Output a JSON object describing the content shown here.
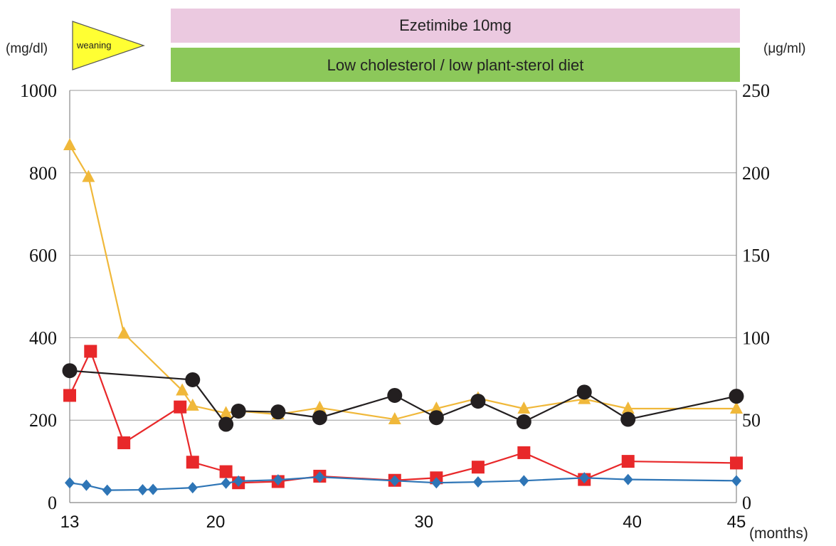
{
  "chart_data": {
    "type": "line",
    "x_unit": "(months)",
    "x_ticks": [
      13,
      20,
      30,
      40,
      45
    ],
    "xlim": [
      13,
      45
    ],
    "left_axis": {
      "unit": "(mg/dl)",
      "ylim": [
        0,
        1000
      ],
      "ticks": [
        0,
        200,
        400,
        600,
        800,
        1000
      ]
    },
    "right_axis": {
      "unit": "(μg/ml)",
      "ylim": [
        0,
        250
      ],
      "ticks": [
        0,
        50,
        100,
        150,
        200,
        250
      ]
    },
    "grid": true,
    "annotations": {
      "weaning": "weaning",
      "ezetimibe_bar": "Ezetimibe 10mg",
      "diet_bar": "Low cholesterol / low plant-sterol diet"
    },
    "series": [
      {
        "axis": "left",
        "marker": "triangle",
        "color": "#f0b83a",
        "x": [
          13,
          13.9,
          15.6,
          18.4,
          18.9,
          20.5,
          21.1,
          23.0,
          25.0,
          28.6,
          30.6,
          32.6,
          34.8,
          37.7,
          39.8,
          45.0
        ],
        "y": [
          867,
          790,
          410,
          272,
          235,
          217,
          222,
          214,
          230,
          202,
          228,
          253,
          228,
          251,
          228,
          228
        ]
      },
      {
        "axis": "left",
        "marker": "square",
        "color": "#e8282a",
        "x": [
          13,
          14.0,
          15.6,
          18.3,
          18.9,
          20.5,
          21.1,
          23.0,
          25.0,
          28.6,
          30.6,
          32.6,
          34.8,
          37.7,
          39.8,
          45.0
        ],
        "y": [
          260,
          367,
          145,
          232,
          98,
          75,
          48,
          51,
          64,
          54,
          60,
          86,
          121,
          56,
          100,
          96
        ]
      },
      {
        "axis": "left",
        "marker": "diamond",
        "color": "#2e75b6",
        "x": [
          13,
          13.8,
          14.8,
          16.5,
          17.0,
          18.9,
          20.5,
          21.1,
          23.0,
          25.0,
          28.6,
          30.6,
          32.6,
          34.8,
          37.7,
          39.8,
          45.0
        ],
        "y": [
          48,
          42,
          30,
          31,
          32,
          36,
          47,
          52,
          55,
          62,
          53,
          48,
          50,
          53,
          60,
          56,
          53
        ]
      },
      {
        "axis": "right",
        "marker": "circle",
        "color": "#231f20",
        "x": [
          13,
          18.9,
          20.5,
          21.1,
          23.0,
          25.0,
          28.6,
          30.6,
          32.6,
          34.8,
          37.7,
          39.8,
          45.0
        ],
        "y": [
          80,
          74.5,
          47.5,
          55.5,
          55,
          51.5,
          65,
          51.5,
          61.5,
          49,
          67,
          50.5,
          64.5
        ]
      }
    ]
  }
}
